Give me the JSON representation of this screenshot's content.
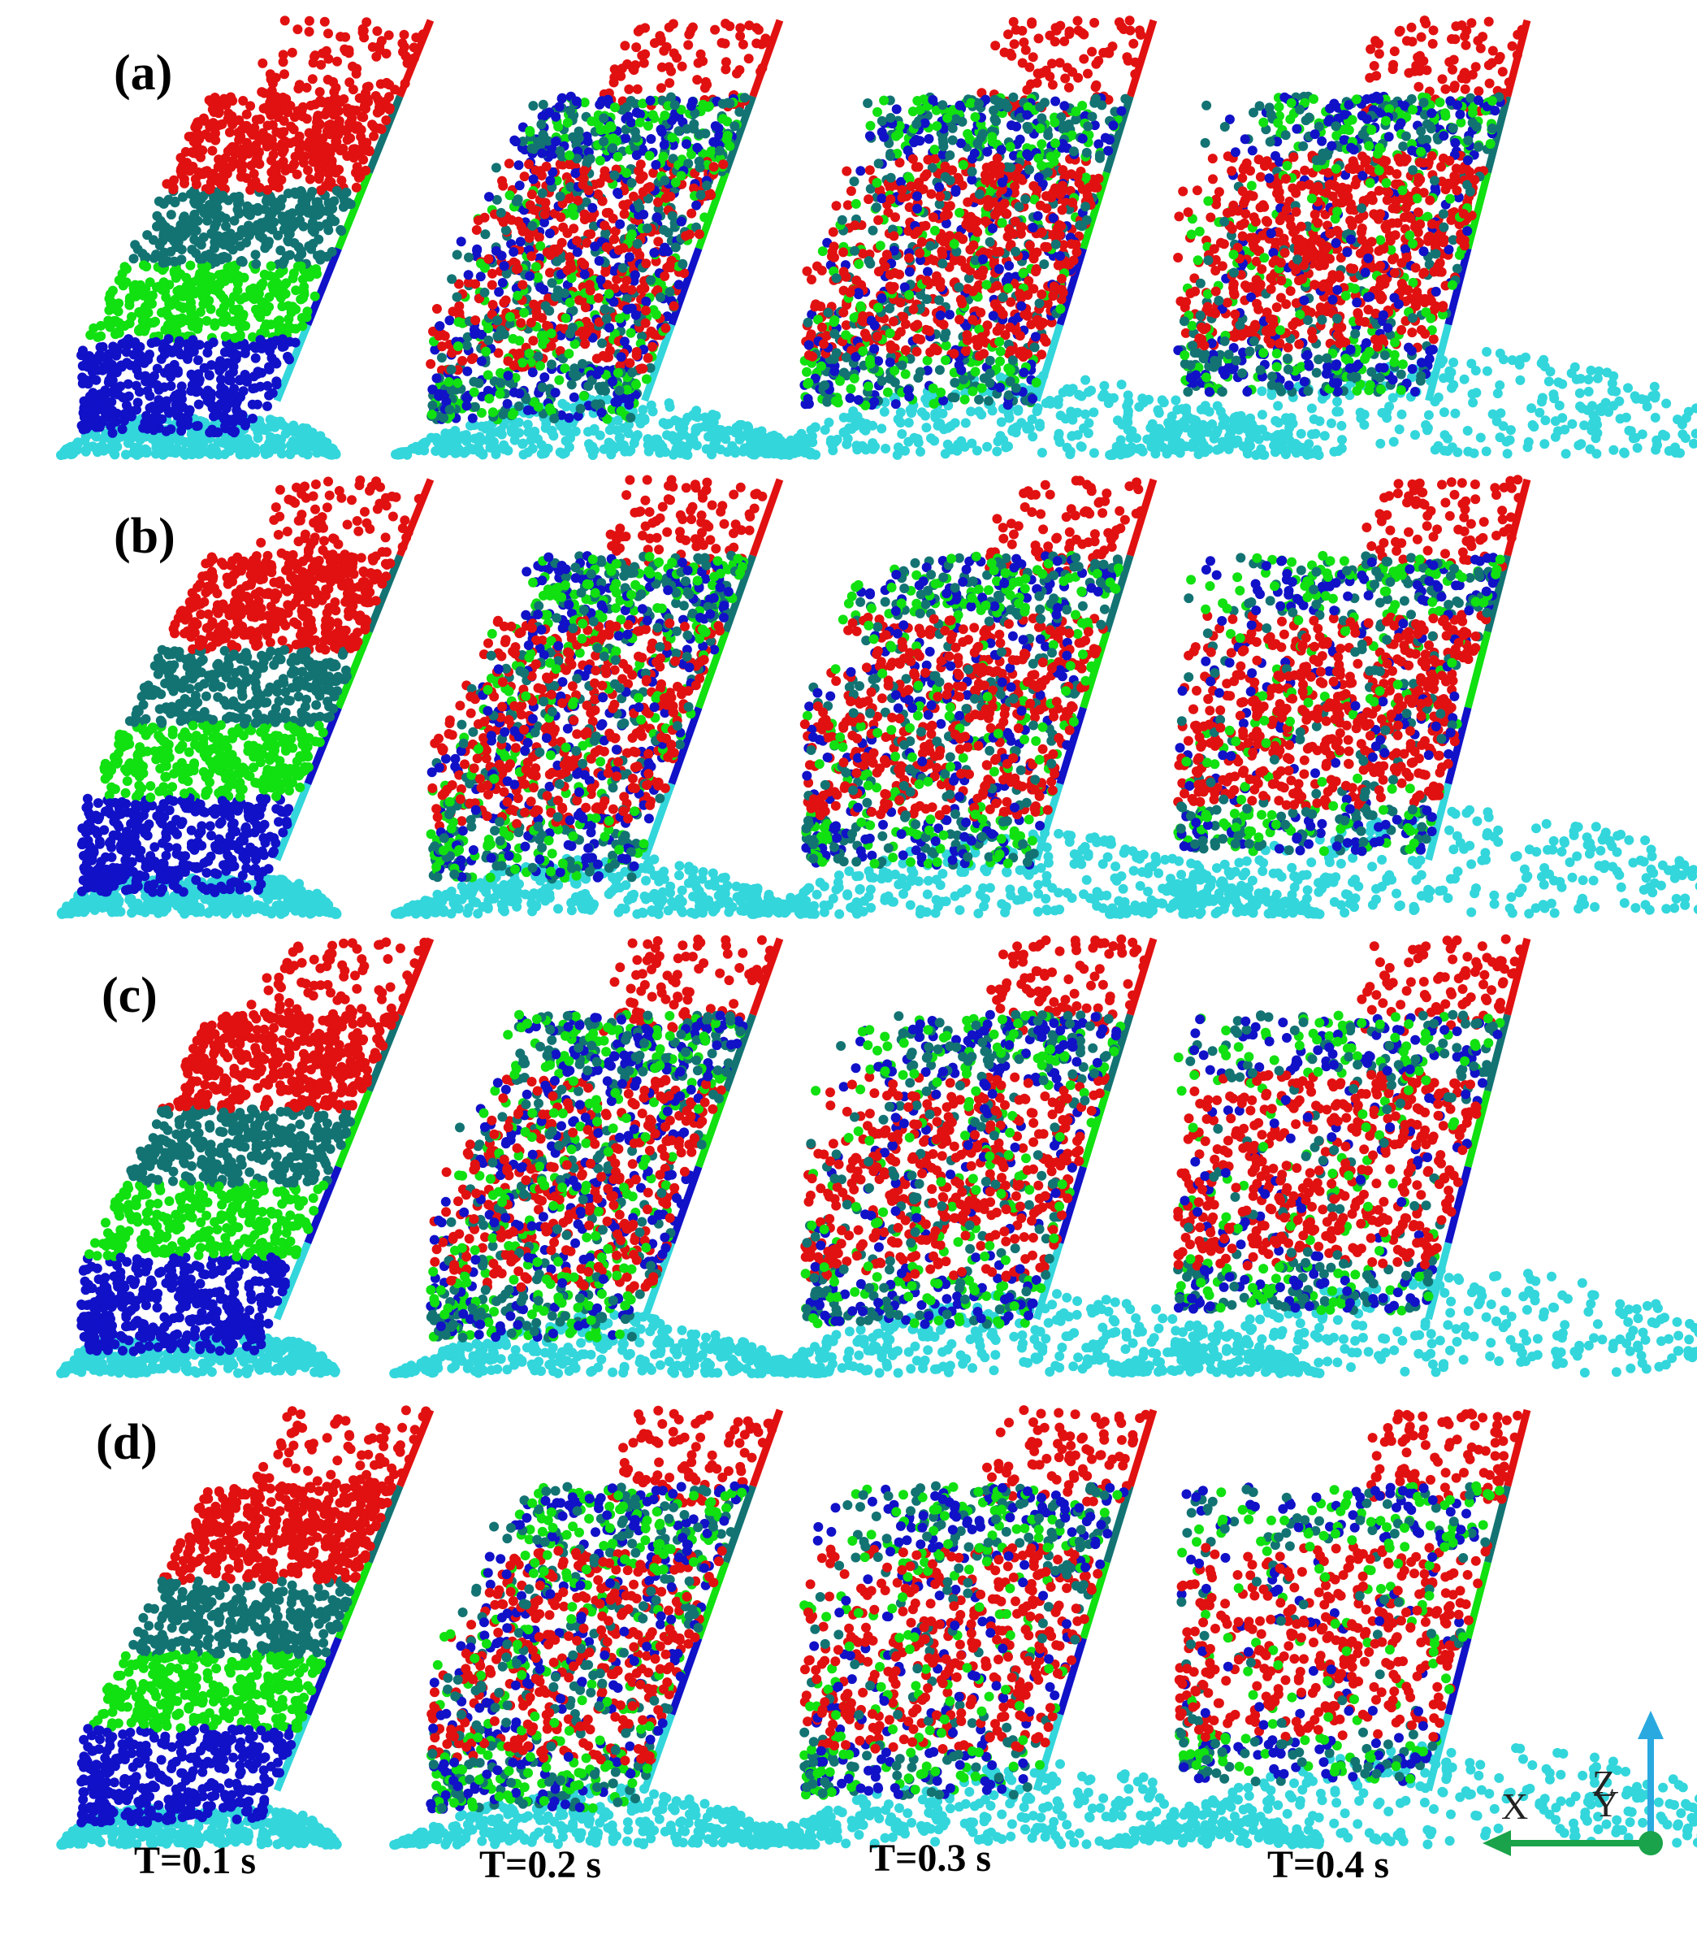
{
  "rows": [
    {
      "label": "(a)",
      "stage": 0.0
    },
    {
      "label": "(b)",
      "stage": 0.18
    },
    {
      "label": "(c)",
      "stage": 0.36
    },
    {
      "label": "(d)",
      "stage": 0.55
    }
  ],
  "times": [
    "T=0.1 s",
    "T=0.2 s",
    "T=0.3 s",
    "T=0.4 s"
  ],
  "axes": {
    "z": "Z",
    "x": "X",
    "y": "Y"
  },
  "colors": {
    "red": "#e11111",
    "teal": "#137373",
    "green": "#11e011",
    "blue": "#1111c8",
    "cyan": "#33d6db",
    "z_arrow": "#29a9e0",
    "x_arrow": "#1aa34a"
  }
}
